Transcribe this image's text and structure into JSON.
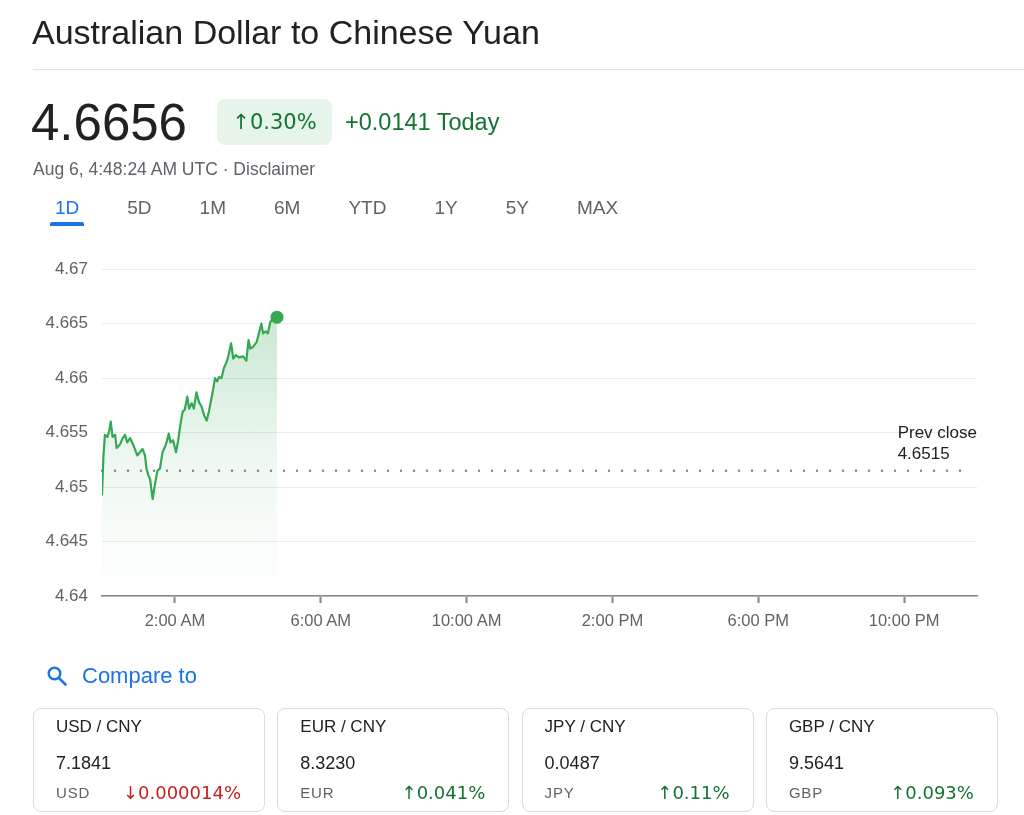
{
  "chart_data": [
    {
      "type": "area",
      "title": "Australian Dollar to Chinese Yuan",
      "annotations": [
        "4.6656",
        "↑0.30%",
        "+0.0141 Today",
        "Aug 6, 4:48:24 AM UTC · Disclaimer",
        "1D",
        "5D",
        "1M",
        "6M",
        "YTD",
        "1Y",
        "5Y",
        "MAX",
        "Compare to"
      ],
      "x": [
        0,
        0.04,
        0.08,
        0.15,
        0.2,
        0.24,
        0.29,
        0.36,
        0.4,
        0.49,
        0.57,
        0.63,
        0.69,
        0.77,
        0.84,
        0.9,
        0.97,
        1.04,
        1.11,
        1.18,
        1.22,
        1.27,
        1.32,
        1.39,
        1.45,
        1.52,
        1.59,
        1.66,
        1.73,
        1.77,
        1.83,
        1.88,
        1.95,
        2.03,
        2.09,
        2.14,
        2.21,
        2.27,
        2.34,
        2.39,
        2.46,
        2.52,
        2.59,
        2.66,
        2.73,
        2.8,
        2.87,
        2.93,
        3,
        3.05,
        3.1,
        3.16,
        3.21,
        3.28,
        3.34,
        3.42,
        3.47,
        3.54,
        3.6,
        3.67,
        3.76,
        3.87,
        3.96,
        4.02,
        4.07,
        4.15,
        4.24,
        4.31,
        4.37,
        4.42,
        4.49,
        4.55,
        4.62,
        4.69,
        4.8
      ],
      "series": [
        {
          "color": "#34a853",
          "values": [
            4.6493,
            4.6529,
            4.6548,
            4.6546,
            4.6552,
            4.656,
            4.6546,
            4.6548,
            4.6536,
            4.6539,
            4.6545,
            4.6548,
            4.6541,
            4.6545,
            4.654,
            4.6535,
            4.6529,
            4.6532,
            4.6535,
            4.6529,
            4.6517,
            4.6511,
            4.6507,
            4.6489,
            4.6502,
            4.6515,
            4.6517,
            4.6532,
            4.6537,
            4.6541,
            4.6549,
            4.6541,
            4.6543,
            4.6532,
            4.6543,
            4.6555,
            4.6569,
            4.6571,
            4.6583,
            4.6572,
            4.6577,
            4.6572,
            4.6587,
            4.6578,
            4.6574,
            4.6566,
            4.6561,
            4.6569,
            4.6581,
            4.659,
            4.66,
            4.6597,
            4.6601,
            4.66,
            4.6609,
            4.6615,
            4.6621,
            4.6632,
            4.6618,
            4.6621,
            4.6619,
            4.662,
            4.6616,
            4.6635,
            4.6627,
            4.6629,
            4.6633,
            4.6642,
            4.665,
            4.6641,
            4.6643,
            4.6641,
            4.6652,
            4.6653,
            4.6656
          ]
        },
        {
          "type": "scatter",
          "marker": "circle",
          "color": "#34a853",
          "x": [
            4.8
          ],
          "values": [
            4.6656
          ]
        }
      ],
      "xlim": [
        0,
        24
      ],
      "xticks": [
        {
          "value": 2,
          "label": "2:00 AM"
        },
        {
          "value": 6,
          "label": "6:00 AM"
        },
        {
          "value": 10,
          "label": "10:00 AM"
        },
        {
          "value": 14,
          "label": "2:00 PM"
        },
        {
          "value": 18,
          "label": "6:00 PM"
        },
        {
          "value": 22,
          "label": "10:00 PM"
        }
      ],
      "ylim": [
        4.64,
        4.67
      ],
      "yticks": [
        4.64,
        4.645,
        4.65,
        4.655,
        4.66,
        4.665,
        4.67
      ],
      "grid": "y",
      "marker": "none",
      "ref_lines": [
        {
          "axis": "y",
          "value": 4.6515,
          "label": "Prev close\n4.6515",
          "color": "#80868b",
          "line_style": "dotted"
        }
      ]
    },
    {
      "type": "other",
      "title": "USD / CNY",
      "annotations": [
        "7.1841",
        "USD",
        "↓0.000014%"
      ],
      "color": "#c5221f"
    },
    {
      "type": "other",
      "title": "EUR / CNY",
      "annotations": [
        "8.3230",
        "EUR",
        "↑0.041%"
      ],
      "color": "#137333"
    },
    {
      "type": "other",
      "title": "JPY / CNY",
      "annotations": [
        "0.0487",
        "JPY",
        "↑0.11%"
      ],
      "color": "#137333"
    },
    {
      "type": "other",
      "title": "GBP / CNY",
      "annotations": [
        "9.5641",
        "GBP",
        "↑0.093%"
      ],
      "color": "#137333"
    }
  ]
}
